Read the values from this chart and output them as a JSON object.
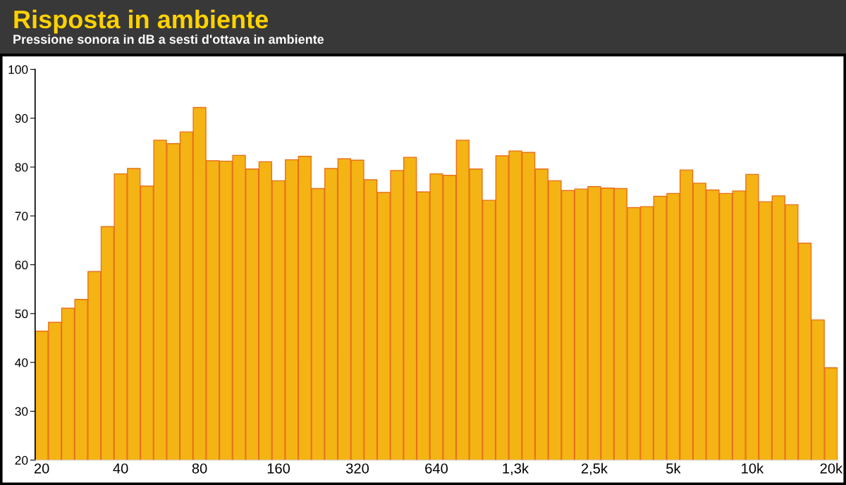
{
  "chart_data": {
    "type": "bar",
    "title": "Risposta in ambiente",
    "subtitle": "Pressione sonora in dB a sesti d'ottava in ambiente",
    "categories": [
      "20",
      null,
      null,
      null,
      null,
      null,
      "40",
      null,
      null,
      null,
      null,
      null,
      "80",
      null,
      null,
      null,
      null,
      null,
      "160",
      null,
      null,
      null,
      null,
      null,
      "320",
      null,
      null,
      null,
      null,
      null,
      "640",
      null,
      null,
      null,
      null,
      null,
      "1,3k",
      null,
      null,
      null,
      null,
      null,
      "2,5k",
      null,
      null,
      null,
      null,
      null,
      "5k",
      null,
      null,
      null,
      null,
      null,
      "10k",
      null,
      null,
      null,
      null,
      null,
      "20k"
    ],
    "values": [
      46.4,
      48.2,
      51.1,
      52.9,
      58.6,
      67.8,
      78.6,
      79.7,
      76.1,
      85.5,
      84.8,
      87.2,
      92.2,
      81.3,
      81.2,
      82.4,
      79.6,
      81.1,
      77.2,
      81.5,
      82.2,
      75.6,
      79.7,
      81.7,
      81.4,
      77.4,
      74.8,
      79.3,
      82.0,
      74.9,
      78.6,
      78.3,
      85.5,
      79.6,
      73.2,
      82.3,
      83.3,
      83.0,
      79.6,
      77.2,
      75.2,
      75.5,
      76.0,
      75.7,
      75.6,
      71.7,
      71.9,
      74.0,
      74.6,
      79.4,
      76.7,
      75.3,
      74.6,
      75.1,
      78.5,
      72.9,
      74.1,
      72.3,
      64.4,
      48.7,
      38.9
    ],
    "color": "#f4b414",
    "ylim": [
      20,
      100
    ],
    "yticks": [
      20,
      30,
      40,
      50,
      60,
      70,
      80,
      90,
      100
    ]
  }
}
